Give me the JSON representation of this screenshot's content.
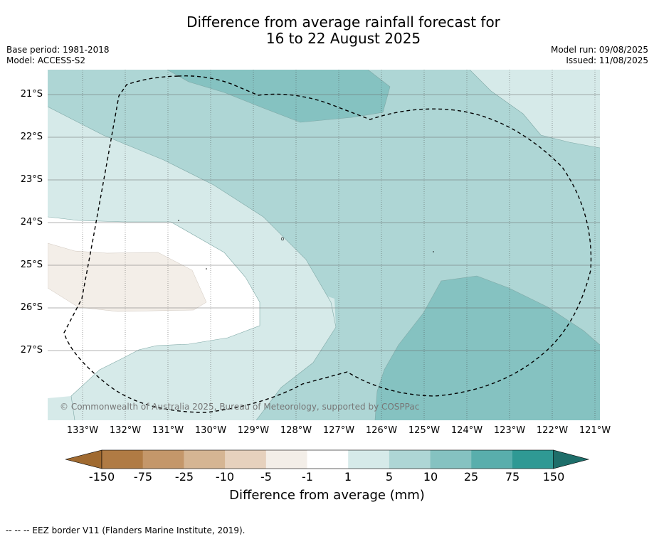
{
  "title_line1": "Difference from average rainfall forecast for",
  "title_line2": "16 to 22 August 2025",
  "base_period": "Base period: 1981-2018",
  "model": "Model: ACCESS-S2",
  "model_run": "Model run: 09/08/2025",
  "issued": "Issued: 11/08/2025",
  "copyright": "© Commonwealth of Australia 2025, Bureau of Meteorology, supported by COSPPac",
  "footnote": "--  --  -- EEZ border V11 (Flanders Marine Institute, 2019).",
  "lon_ticks": [
    "133°W",
    "132°W",
    "131°W",
    "130°W",
    "129°W",
    "128°W",
    "127°W",
    "126°W",
    "125°W",
    "124°W",
    "123°W",
    "122°W",
    "121°W"
  ],
  "lat_ticks": [
    "21°S",
    "22°S",
    "23°S",
    "24°S",
    "25°S",
    "26°S",
    "27°S"
  ],
  "colorbar": {
    "title": "Difference from average (mm)",
    "labels": [
      "-150",
      "-75",
      "-25",
      "-10",
      "-5",
      "-1",
      "1",
      "5",
      "10",
      "25",
      "75",
      "150"
    ],
    "colors": [
      "#a06a30",
      "#b07b44",
      "#c4976a",
      "#d5b593",
      "#e6d1bd",
      "#f3eee8",
      "#ffffff",
      "#d6eae9",
      "#aed6d5",
      "#85c2c1",
      "#59aeac",
      "#2f9994",
      "#1e6e6a"
    ]
  }
}
